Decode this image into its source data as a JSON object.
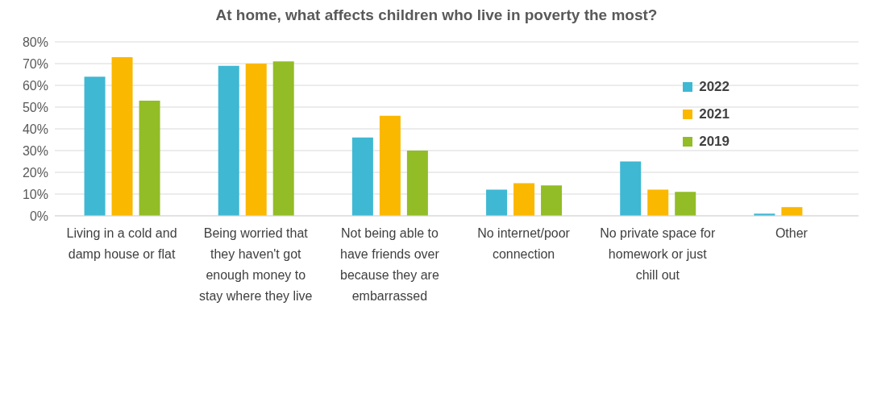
{
  "chart_data": {
    "type": "bar",
    "title": "At home, what affects children who live in poverty the most?",
    "categories": [
      "Living in a cold and damp house or flat",
      "Being worried that they haven't got enough money to stay where they live",
      "Not being able to have friends over because they are embarrassed",
      "No internet/poor connection",
      "No private space for homework or just chill out",
      "Other"
    ],
    "series": [
      {
        "name": "2022",
        "color": "#3fb8d3",
        "values": [
          64,
          69,
          36,
          12,
          25,
          1
        ]
      },
      {
        "name": "2021",
        "color": "#fbb800",
        "values": [
          73,
          70,
          46,
          15,
          12,
          4
        ]
      },
      {
        "name": "2019",
        "color": "#92bd26",
        "values": [
          53,
          71,
          30,
          14,
          11,
          null
        ]
      }
    ],
    "ylim": [
      0,
      80
    ],
    "yticks": [
      {
        "value": 0,
        "label": "0%"
      },
      {
        "value": 10,
        "label": "10%"
      },
      {
        "value": 20,
        "label": "20%"
      },
      {
        "value": 30,
        "label": "30%"
      },
      {
        "value": 40,
        "label": "40%"
      },
      {
        "value": 50,
        "label": "50%"
      },
      {
        "value": 60,
        "label": "60%"
      },
      {
        "value": 70,
        "label": "70%"
      },
      {
        "value": 80,
        "label": "80%"
      }
    ],
    "grid": "y",
    "legend": "top right"
  }
}
